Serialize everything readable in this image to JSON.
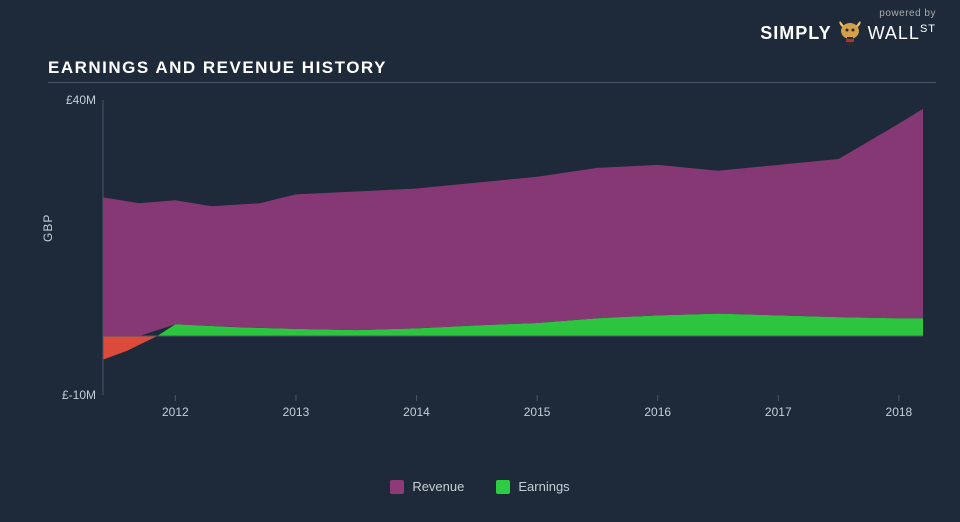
{
  "logo": {
    "powered_by": "powered by",
    "brand_simply": "SIMPLY",
    "brand_wall": "WALL",
    "brand_st": "ST"
  },
  "title": "EARNINGS AND REVENUE HISTORY",
  "chart": {
    "type": "area",
    "y_axis_label": "GBP",
    "y_min": -10,
    "y_max": 40,
    "y_ticks": [
      {
        "value": 40,
        "label": "£40M"
      },
      {
        "value": -10,
        "label": "£-10M"
      }
    ],
    "x_min": 2011.4,
    "x_max": 2018.2,
    "x_ticks": [
      2012,
      2013,
      2014,
      2015,
      2016,
      2017,
      2018
    ],
    "series": {
      "revenue": {
        "color": "#8e3a78",
        "label": "Revenue",
        "points": [
          {
            "x": 2011.4,
            "y": 23.5
          },
          {
            "x": 2011.7,
            "y": 22.5
          },
          {
            "x": 2012.0,
            "y": 23.0
          },
          {
            "x": 2012.3,
            "y": 22.0
          },
          {
            "x": 2012.7,
            "y": 22.5
          },
          {
            "x": 2013.0,
            "y": 24.0
          },
          {
            "x": 2013.5,
            "y": 24.5
          },
          {
            "x": 2014.0,
            "y": 25.0
          },
          {
            "x": 2014.5,
            "y": 26.0
          },
          {
            "x": 2015.0,
            "y": 27.0
          },
          {
            "x": 2015.5,
            "y": 28.5
          },
          {
            "x": 2016.0,
            "y": 29.0
          },
          {
            "x": 2016.5,
            "y": 28.0
          },
          {
            "x": 2017.0,
            "y": 29.0
          },
          {
            "x": 2017.5,
            "y": 30.0
          },
          {
            "x": 2018.0,
            "y": 36.0
          },
          {
            "x": 2018.2,
            "y": 38.5
          }
        ]
      },
      "earnings_positive": {
        "color": "#2ecc40",
        "label": "Earnings",
        "points": [
          {
            "x": 2011.85,
            "y": 0
          },
          {
            "x": 2012.0,
            "y": 2.0
          },
          {
            "x": 2012.5,
            "y": 1.5
          },
          {
            "x": 2013.0,
            "y": 1.2
          },
          {
            "x": 2013.5,
            "y": 1.0
          },
          {
            "x": 2014.0,
            "y": 1.3
          },
          {
            "x": 2014.5,
            "y": 1.8
          },
          {
            "x": 2015.0,
            "y": 2.2
          },
          {
            "x": 2015.5,
            "y": 3.0
          },
          {
            "x": 2016.0,
            "y": 3.5
          },
          {
            "x": 2016.5,
            "y": 3.8
          },
          {
            "x": 2017.0,
            "y": 3.5
          },
          {
            "x": 2017.5,
            "y": 3.2
          },
          {
            "x": 2018.0,
            "y": 3.0
          },
          {
            "x": 2018.2,
            "y": 3.0
          }
        ]
      },
      "earnings_negative": {
        "color": "#e74c3c",
        "points": [
          {
            "x": 2011.4,
            "y": -4.0
          },
          {
            "x": 2011.6,
            "y": -2.5
          },
          {
            "x": 2011.85,
            "y": 0
          }
        ]
      }
    },
    "background": "#1e2a3a",
    "axis_color": "#4a5568",
    "text_color": "#c5cfd8"
  },
  "legend": [
    {
      "label": "Revenue",
      "color": "#8e3a78"
    },
    {
      "label": "Earnings",
      "color": "#2ecc40"
    }
  ]
}
